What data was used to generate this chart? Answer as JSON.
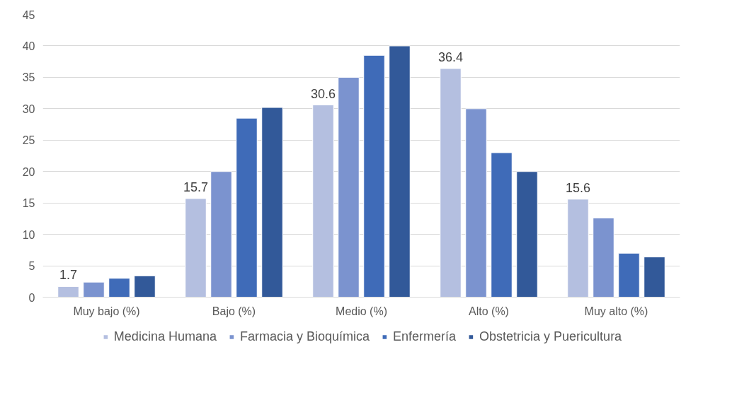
{
  "chart_data": {
    "type": "bar",
    "categories": [
      "Muy bajo (%)",
      "Bajo (%)",
      "Medio (%)",
      "Alto (%)",
      "Muy alto (%)"
    ],
    "series": [
      {
        "name": "Medicina Humana",
        "color": "#b4bfe0",
        "values": [
          1.7,
          15.7,
          30.6,
          36.4,
          15.6
        ],
        "value_labels": [
          "1.7",
          "15.7",
          "30.6",
          "36.4",
          "15.6"
        ]
      },
      {
        "name": "Farmacia y Bioquímica",
        "color": "#7b93cf",
        "values": [
          2.4,
          20,
          35,
          30,
          12.6
        ]
      },
      {
        "name": "Enfermería",
        "color": "#3f6bb8",
        "values": [
          3.0,
          28.5,
          38.5,
          23,
          7.0
        ]
      },
      {
        "name": "Obstetricia y Puericultura",
        "color": "#325999",
        "values": [
          3.4,
          30.2,
          40,
          20,
          6.4
        ]
      }
    ],
    "ylim": [
      0,
      45
    ],
    "yticks": [
      0,
      5,
      10,
      15,
      20,
      25,
      30,
      35,
      40,
      45
    ],
    "grid": "y",
    "legend": "bottom"
  }
}
